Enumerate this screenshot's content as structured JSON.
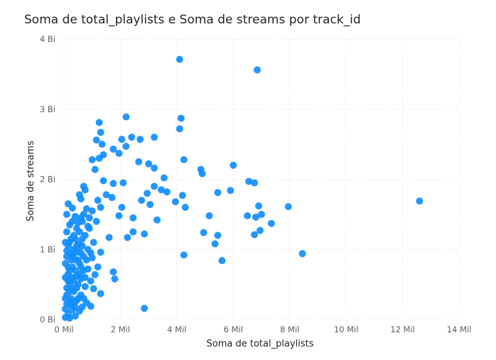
{
  "chart_data": {
    "type": "scatter",
    "title": "Soma de total_playlists e Soma de streams por track_id",
    "xlabel": "Soma de total_playlists",
    "ylabel": "Soma de streams",
    "x_unit": "Mil",
    "y_unit": "Bi",
    "xlim": [
      0,
      14
    ],
    "ylim": [
      0,
      4
    ],
    "x_ticks": [
      0,
      2,
      4,
      6,
      8,
      10,
      12,
      14
    ],
    "y_ticks": [
      0,
      1,
      2,
      3,
      4
    ],
    "x_tick_labels": [
      "0 Mil",
      "2 Mil",
      "4 Mil",
      "6 Mil",
      "8 Mil",
      "10 Mil",
      "12 Mil",
      "14 Mil"
    ],
    "y_tick_labels": [
      "0 Bi",
      "1 Bi",
      "2 Bi",
      "3 Bi",
      "4 Bi"
    ],
    "grid": true,
    "marker_color": "#118DFF",
    "points": [
      [
        4.1,
        3.71
      ],
      [
        6.85,
        3.56
      ],
      [
        12.6,
        1.69
      ],
      [
        2.2,
        2.89
      ],
      [
        1.25,
        2.81
      ],
      [
        4.15,
        2.87
      ],
      [
        1.3,
        2.67
      ],
      [
        4.1,
        2.72
      ],
      [
        2.4,
        2.6
      ],
      [
        3.2,
        2.6
      ],
      [
        2.05,
        2.57
      ],
      [
        2.7,
        2.57
      ],
      [
        1.15,
        2.56
      ],
      [
        1.35,
        2.5
      ],
      [
        2.2,
        2.47
      ],
      [
        1.75,
        2.43
      ],
      [
        1.4,
        2.35
      ],
      [
        1.95,
        2.37
      ],
      [
        1.0,
        2.28
      ],
      [
        1.25,
        2.3
      ],
      [
        4.25,
        2.28
      ],
      [
        2.65,
        2.25
      ],
      [
        3.0,
        2.22
      ],
      [
        6.0,
        2.2
      ],
      [
        3.2,
        2.16
      ],
      [
        1.1,
        2.14
      ],
      [
        4.85,
        2.14
      ],
      [
        4.9,
        2.08
      ],
      [
        3.55,
        2.02
      ],
      [
        1.4,
        1.98
      ],
      [
        1.75,
        1.94
      ],
      [
        2.1,
        1.95
      ],
      [
        6.55,
        1.97
      ],
      [
        6.75,
        1.95
      ],
      [
        3.2,
        1.9
      ],
      [
        0.7,
        1.9
      ],
      [
        0.75,
        1.85
      ],
      [
        3.45,
        1.85
      ],
      [
        3.65,
        1.82
      ],
      [
        5.9,
        1.84
      ],
      [
        5.45,
        1.81
      ],
      [
        2.95,
        1.8
      ],
      [
        1.5,
        1.78
      ],
      [
        0.55,
        1.78
      ],
      [
        4.2,
        1.77
      ],
      [
        1.7,
        1.74
      ],
      [
        0.6,
        1.72
      ],
      [
        3.95,
        1.68
      ],
      [
        2.75,
        1.7
      ],
      [
        1.2,
        1.7
      ],
      [
        0.15,
        1.65
      ],
      [
        4.3,
        1.6
      ],
      [
        6.9,
        1.62
      ],
      [
        7.95,
        1.61
      ],
      [
        1.3,
        1.6
      ],
      [
        2.05,
        1.6
      ],
      [
        0.3,
        1.59
      ],
      [
        0.8,
        1.58
      ],
      [
        3.05,
        1.64
      ],
      [
        1.0,
        1.55
      ],
      [
        0.7,
        1.5
      ],
      [
        0.4,
        1.47
      ],
      [
        1.95,
        1.48
      ],
      [
        2.45,
        1.45
      ],
      [
        5.15,
        1.48
      ],
      [
        6.5,
        1.48
      ],
      [
        6.8,
        1.46
      ],
      [
        7.0,
        1.5
      ],
      [
        0.6,
        1.45
      ],
      [
        0.9,
        1.45
      ],
      [
        3.3,
        1.42
      ],
      [
        0.3,
        1.4
      ],
      [
        1.15,
        1.4
      ],
      [
        0.5,
        1.38
      ],
      [
        7.35,
        1.37
      ],
      [
        0.2,
        1.35
      ],
      [
        0.85,
        1.33
      ],
      [
        0.45,
        1.3
      ],
      [
        2.45,
        1.25
      ],
      [
        4.95,
        1.24
      ],
      [
        5.45,
        1.2
      ],
      [
        2.85,
        1.22
      ],
      [
        6.95,
        1.27
      ],
      [
        6.75,
        1.21
      ],
      [
        0.1,
        1.25
      ],
      [
        1.6,
        1.17
      ],
      [
        2.25,
        1.17
      ],
      [
        0.35,
        1.2
      ],
      [
        0.65,
        1.15
      ],
      [
        1.05,
        1.1
      ],
      [
        0.2,
        1.1
      ],
      [
        5.35,
        1.08
      ],
      [
        0.5,
        1.08
      ],
      [
        1.3,
        0.96
      ],
      [
        8.45,
        0.94
      ],
      [
        4.25,
        0.92
      ],
      [
        0.1,
        0.98
      ],
      [
        0.4,
        0.95
      ],
      [
        0.7,
        0.9
      ],
      [
        5.6,
        0.84
      ],
      [
        1.0,
        0.88
      ],
      [
        0.25,
        0.85
      ],
      [
        0.55,
        0.8
      ],
      [
        1.2,
        0.75
      ],
      [
        0.15,
        0.75
      ],
      [
        0.85,
        0.72
      ],
      [
        1.75,
        0.68
      ],
      [
        1.1,
        0.64
      ],
      [
        0.4,
        0.7
      ],
      [
        1.8,
        0.58
      ],
      [
        0.3,
        0.6
      ],
      [
        0.6,
        0.58
      ],
      [
        0.95,
        0.55
      ],
      [
        0.2,
        0.52
      ],
      [
        0.5,
        0.5
      ],
      [
        0.75,
        0.47
      ],
      [
        1.05,
        0.44
      ],
      [
        0.1,
        0.45
      ],
      [
        1.3,
        0.37
      ],
      [
        0.35,
        0.4
      ],
      [
        0.6,
        0.35
      ],
      [
        0.25,
        0.3
      ],
      [
        0.45,
        0.27
      ],
      [
        0.8,
        0.24
      ],
      [
        0.1,
        0.22
      ],
      [
        0.95,
        0.19
      ],
      [
        2.85,
        0.16
      ],
      [
        0.3,
        0.14
      ],
      [
        0.55,
        0.12
      ],
      [
        0.15,
        0.08
      ],
      [
        0.4,
        0.05
      ],
      [
        0.05,
        0.03
      ],
      [
        0.2,
        0.02
      ],
      [
        0.65,
        0.18
      ],
      [
        0.25,
        0.95
      ],
      [
        0.5,
        0.85
      ],
      [
        0.15,
        1.05
      ],
      [
        0.35,
        1.0
      ],
      [
        0.05,
        0.6
      ],
      [
        0.1,
        0.9
      ],
      [
        0.3,
        0.75
      ],
      [
        0.45,
        0.62
      ],
      [
        0.7,
        0.7
      ],
      [
        0.85,
        1.0
      ],
      [
        0.55,
        1.25
      ],
      [
        0.9,
        1.3
      ],
      [
        0.4,
        1.15
      ],
      [
        0.65,
        1.05
      ],
      [
        0.2,
        0.4
      ],
      [
        0.05,
        0.3
      ],
      [
        0.15,
        0.55
      ],
      [
        0.35,
        0.55
      ],
      [
        0.5,
        0.3
      ],
      [
        0.7,
        0.3
      ],
      [
        0.25,
        0.2
      ],
      [
        0.05,
        0.15
      ],
      [
        0.4,
        0.85
      ],
      [
        0.6,
        0.95
      ],
      [
        0.75,
        0.6
      ],
      [
        0.3,
        0.45
      ],
      [
        0.15,
        0.65
      ],
      [
        0.45,
        0.45
      ],
      [
        0.1,
        0.35
      ],
      [
        0.6,
        0.75
      ],
      [
        0.8,
        0.85
      ],
      [
        0.2,
        0.7
      ],
      [
        0.35,
        0.25
      ],
      [
        0.55,
        0.65
      ],
      [
        0.05,
        0.8
      ],
      [
        0.25,
        1.15
      ],
      [
        0.45,
        1.05
      ],
      [
        0.65,
        1.4
      ],
      [
        0.1,
        1.5
      ],
      [
        0.3,
        0.9
      ],
      [
        0.05,
        1.1
      ],
      [
        0.5,
        0.98
      ],
      [
        0.75,
        1.2
      ],
      [
        0.95,
        0.95
      ],
      [
        0.2,
        0.25
      ],
      [
        0.4,
        0.18
      ]
    ]
  }
}
